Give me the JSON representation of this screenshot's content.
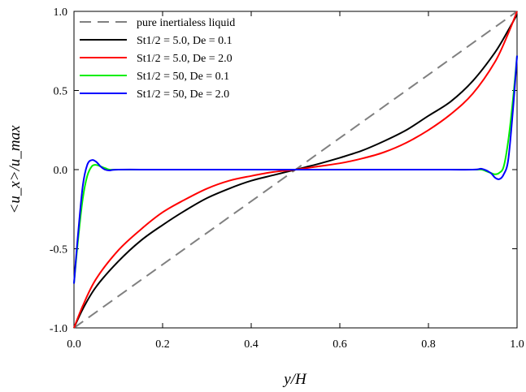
{
  "chart_data": {
    "type": "line",
    "title": "",
    "xlabel": "y/H",
    "ylabel": "<u_x>/u_max",
    "xlim": [
      0.0,
      1.0
    ],
    "ylim": [
      -1.0,
      1.0
    ],
    "xticks": [
      "0.0",
      "0.2",
      "0.4",
      "0.6",
      "0.8",
      "1.0"
    ],
    "yticks": [
      "-1.0",
      "-0.5",
      "0.0",
      "0.5",
      "1.0"
    ],
    "grid": false,
    "legend_position": "top-left",
    "series": [
      {
        "name": "pure inertialess liquid",
        "color": "#808080",
        "dash": true,
        "x": [
          0.0,
          1.0
        ],
        "y": [
          -1.0,
          1.0
        ]
      },
      {
        "name": "St1/2 = 5.0, De = 0.1",
        "color": "#000000",
        "dash": false,
        "x": [
          0.0,
          0.02,
          0.05,
          0.1,
          0.15,
          0.2,
          0.25,
          0.3,
          0.35,
          0.4,
          0.45,
          0.5,
          0.55,
          0.6,
          0.65,
          0.7,
          0.75,
          0.8,
          0.85,
          0.9,
          0.95,
          0.98,
          1.0
        ],
        "y": [
          -1.0,
          -0.88,
          -0.74,
          -0.58,
          -0.45,
          -0.35,
          -0.26,
          -0.18,
          -0.12,
          -0.07,
          -0.035,
          0.0,
          0.035,
          0.075,
          0.12,
          0.18,
          0.25,
          0.34,
          0.43,
          0.56,
          0.74,
          0.88,
          0.98
        ]
      },
      {
        "name": "St1/2 = 5.0, De = 2.0",
        "color": "#ff0000",
        "dash": false,
        "x": [
          0.0,
          0.02,
          0.05,
          0.1,
          0.15,
          0.2,
          0.25,
          0.3,
          0.35,
          0.4,
          0.45,
          0.5,
          0.55,
          0.6,
          0.65,
          0.7,
          0.75,
          0.8,
          0.85,
          0.9,
          0.95,
          0.98,
          1.0
        ],
        "y": [
          -1.0,
          -0.86,
          -0.69,
          -0.51,
          -0.38,
          -0.27,
          -0.19,
          -0.12,
          -0.07,
          -0.04,
          -0.015,
          0.0,
          0.02,
          0.04,
          0.07,
          0.11,
          0.17,
          0.25,
          0.35,
          0.48,
          0.68,
          0.86,
          1.0
        ]
      },
      {
        "name": "St1/2 = 50, De = 0.1",
        "color": "#00ee00",
        "dash": false,
        "x": [
          0.0,
          0.01,
          0.02,
          0.03,
          0.04,
          0.05,
          0.06,
          0.07,
          0.08,
          0.1,
          0.2,
          0.4,
          0.6,
          0.8,
          0.9,
          0.92,
          0.93,
          0.94,
          0.95,
          0.96,
          0.97,
          0.98,
          0.99,
          1.0
        ],
        "y": [
          -0.72,
          -0.42,
          -0.18,
          -0.04,
          0.02,
          0.03,
          0.02,
          0.01,
          0.0,
          0.0,
          0.0,
          0.0,
          0.0,
          0.0,
          0.0,
          0.0,
          -0.01,
          -0.02,
          -0.03,
          -0.02,
          0.02,
          0.18,
          0.42,
          0.72
        ]
      },
      {
        "name": "St1/2 = 50, De = 2.0",
        "color": "#0000ff",
        "dash": false,
        "x": [
          0.0,
          0.01,
          0.02,
          0.03,
          0.04,
          0.05,
          0.06,
          0.07,
          0.08,
          0.1,
          0.2,
          0.4,
          0.6,
          0.8,
          0.9,
          0.92,
          0.94,
          0.95,
          0.96,
          0.97,
          0.98,
          0.99,
          1.0
        ],
        "y": [
          -0.72,
          -0.38,
          -0.1,
          0.03,
          0.06,
          0.05,
          0.02,
          0.0,
          -0.005,
          0.0,
          0.0,
          0.0,
          0.0,
          0.0,
          0.0,
          0.005,
          -0.02,
          -0.05,
          -0.06,
          -0.03,
          0.06,
          0.35,
          0.72
        ]
      }
    ]
  }
}
